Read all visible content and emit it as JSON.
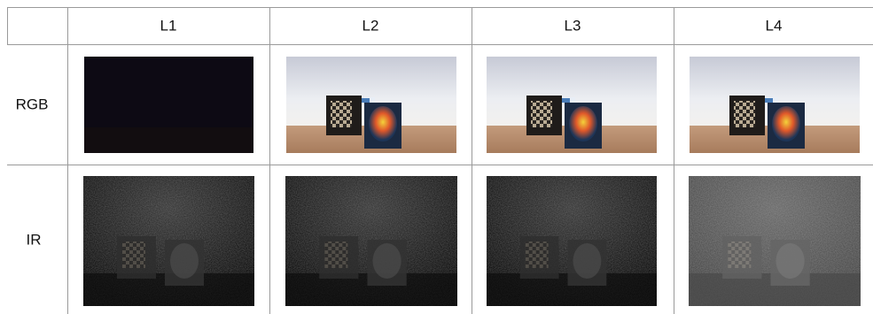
{
  "table": {
    "columns": [
      "L1",
      "L2",
      "L3",
      "L4"
    ],
    "rows": [
      {
        "label": "RGB"
      },
      {
        "label": "IR"
      }
    ]
  }
}
